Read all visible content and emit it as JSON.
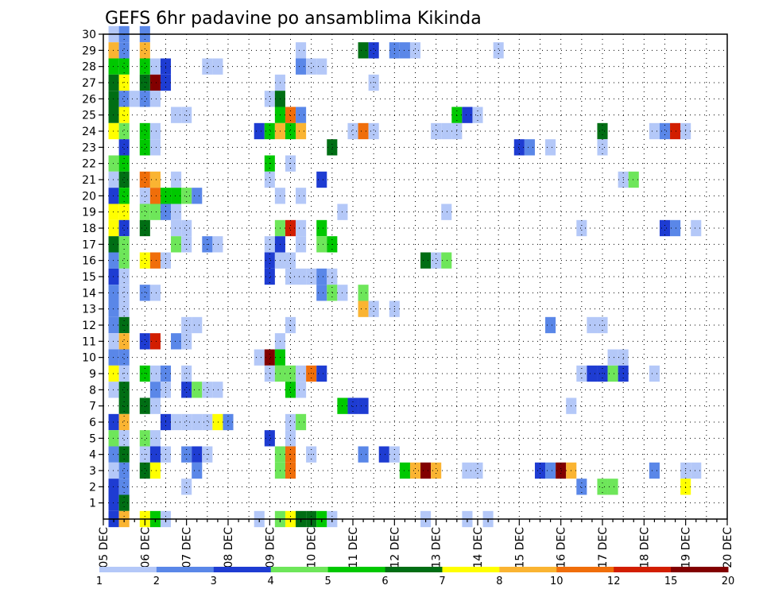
{
  "chart_data": {
    "type": "heatmap",
    "title": "GEFS 6hr padavine po ansamblima Kikinda",
    "xlabel": "",
    "ylabel": "",
    "x_unit": "6-hour steps from 05 DEC 00Z",
    "x_tick_labels": [
      "05 DEC",
      "06 DEC",
      "07 DEC",
      "08 DEC",
      "09 DEC",
      "10 DEC",
      "11 DEC",
      "12 DEC",
      "13 DEC",
      "14 DEC",
      "15 DEC",
      "16 DEC",
      "17 DEC",
      "18 DEC",
      "19 DEC",
      "20 DEC"
    ],
    "xlim": [
      0,
      60
    ],
    "ylim": [
      0,
      30
    ],
    "y_tick_labels": [
      "1",
      "2",
      "3",
      "4",
      "5",
      "6",
      "7",
      "8",
      "9",
      "10",
      "11",
      "12",
      "13",
      "14",
      "15",
      "16",
      "17",
      "18",
      "19",
      "20",
      "21",
      "22",
      "23",
      "24",
      "25",
      "26",
      "27",
      "28",
      "29",
      "30"
    ],
    "grid": true,
    "colorbar": {
      "labels": [
        "1",
        "2",
        "3",
        "4",
        "5",
        "6",
        "7",
        "8",
        "10",
        "12",
        "15",
        "20"
      ],
      "colors": [
        "#b4c8f8",
        "#5a87e8",
        "#1e3cd2",
        "#6ee65a",
        "#00c800",
        "#006e14",
        "#ffff00",
        "#fab432",
        "#f06e0a",
        "#d21e00",
        "#820000"
      ]
    },
    "cells": [
      [
        1,
        30,
        0
      ],
      [
        2,
        30,
        1
      ],
      [
        4,
        30,
        1
      ],
      [
        1,
        29,
        7
      ],
      [
        2,
        29,
        1
      ],
      [
        4,
        29,
        7
      ],
      [
        19,
        29,
        0
      ],
      [
        25,
        29,
        5
      ],
      [
        26,
        29,
        2
      ],
      [
        28,
        29,
        1
      ],
      [
        29,
        29,
        1
      ],
      [
        30,
        29,
        0
      ],
      [
        38,
        29,
        0
      ],
      [
        1,
        28,
        4
      ],
      [
        2,
        28,
        4
      ],
      [
        4,
        28,
        4
      ],
      [
        5,
        28,
        0
      ],
      [
        6,
        28,
        2
      ],
      [
        10,
        28,
        0
      ],
      [
        11,
        28,
        0
      ],
      [
        19,
        28,
        1
      ],
      [
        20,
        28,
        0
      ],
      [
        21,
        28,
        0
      ],
      [
        1,
        27,
        5
      ],
      [
        2,
        27,
        6
      ],
      [
        4,
        27,
        5
      ],
      [
        5,
        27,
        10
      ],
      [
        6,
        27,
        2
      ],
      [
        17,
        27,
        0
      ],
      [
        26,
        27,
        0
      ],
      [
        1,
        26,
        5
      ],
      [
        2,
        26,
        1
      ],
      [
        3,
        26,
        0
      ],
      [
        4,
        26,
        1
      ],
      [
        5,
        26,
        0
      ],
      [
        16,
        26,
        0
      ],
      [
        17,
        26,
        5
      ],
      [
        1,
        25,
        5
      ],
      [
        2,
        25,
        6
      ],
      [
        7,
        25,
        0
      ],
      [
        8,
        25,
        0
      ],
      [
        17,
        25,
        4
      ],
      [
        18,
        25,
        8
      ],
      [
        19,
        25,
        1
      ],
      [
        34,
        25,
        4
      ],
      [
        35,
        25,
        2
      ],
      [
        36,
        25,
        0
      ],
      [
        1,
        24,
        6
      ],
      [
        2,
        24,
        3
      ],
      [
        4,
        24,
        4
      ],
      [
        5,
        24,
        0
      ],
      [
        15,
        24,
        2
      ],
      [
        16,
        24,
        4
      ],
      [
        17,
        24,
        7
      ],
      [
        18,
        24,
        4
      ],
      [
        19,
        24,
        7
      ],
      [
        24,
        24,
        0
      ],
      [
        25,
        24,
        8
      ],
      [
        26,
        24,
        0
      ],
      [
        32,
        24,
        0
      ],
      [
        33,
        24,
        0
      ],
      [
        34,
        24,
        0
      ],
      [
        48,
        24,
        5
      ],
      [
        53,
        24,
        0
      ],
      [
        54,
        24,
        1
      ],
      [
        55,
        24,
        9
      ],
      [
        56,
        24,
        0
      ],
      [
        2,
        23,
        2
      ],
      [
        4,
        23,
        4
      ],
      [
        5,
        23,
        0
      ],
      [
        22,
        23,
        5
      ],
      [
        40,
        23,
        2
      ],
      [
        41,
        23,
        1
      ],
      [
        43,
        23,
        0
      ],
      [
        48,
        23,
        0
      ],
      [
        1,
        22,
        3
      ],
      [
        2,
        22,
        4
      ],
      [
        16,
        22,
        4
      ],
      [
        18,
        22,
        0
      ],
      [
        1,
        21,
        0
      ],
      [
        2,
        21,
        5
      ],
      [
        4,
        21,
        8
      ],
      [
        5,
        21,
        7
      ],
      [
        7,
        21,
        0
      ],
      [
        16,
        21,
        0
      ],
      [
        21,
        21,
        2
      ],
      [
        50,
        21,
        0
      ],
      [
        51,
        21,
        3
      ],
      [
        1,
        20,
        2
      ],
      [
        2,
        20,
        4
      ],
      [
        4,
        20,
        0
      ],
      [
        5,
        20,
        8
      ],
      [
        6,
        20,
        4
      ],
      [
        7,
        20,
        4
      ],
      [
        8,
        20,
        3
      ],
      [
        9,
        20,
        1
      ],
      [
        17,
        20,
        0
      ],
      [
        19,
        20,
        0
      ],
      [
        1,
        19,
        6
      ],
      [
        2,
        19,
        6
      ],
      [
        4,
        19,
        3
      ],
      [
        5,
        19,
        3
      ],
      [
        6,
        19,
        1
      ],
      [
        7,
        19,
        0
      ],
      [
        23,
        19,
        0
      ],
      [
        33,
        19,
        0
      ],
      [
        1,
        18,
        6
      ],
      [
        2,
        18,
        2
      ],
      [
        4,
        18,
        5
      ],
      [
        7,
        18,
        0
      ],
      [
        8,
        18,
        0
      ],
      [
        17,
        18,
        3
      ],
      [
        18,
        18,
        9
      ],
      [
        19,
        18,
        0
      ],
      [
        21,
        18,
        4
      ],
      [
        46,
        18,
        0
      ],
      [
        54,
        18,
        2
      ],
      [
        55,
        18,
        1
      ],
      [
        57,
        18,
        0
      ],
      [
        1,
        17,
        5
      ],
      [
        2,
        17,
        3
      ],
      [
        7,
        17,
        3
      ],
      [
        8,
        17,
        0
      ],
      [
        10,
        17,
        1
      ],
      [
        11,
        17,
        0
      ],
      [
        16,
        17,
        0
      ],
      [
        17,
        17,
        2
      ],
      [
        19,
        17,
        0
      ],
      [
        21,
        17,
        3
      ],
      [
        22,
        17,
        4
      ],
      [
        1,
        16,
        1
      ],
      [
        2,
        16,
        3
      ],
      [
        4,
        16,
        6
      ],
      [
        5,
        16,
        8
      ],
      [
        6,
        16,
        0
      ],
      [
        16,
        16,
        2
      ],
      [
        17,
        16,
        0
      ],
      [
        18,
        16,
        0
      ],
      [
        31,
        16,
        5
      ],
      [
        32,
        16,
        0
      ],
      [
        33,
        16,
        3
      ],
      [
        1,
        15,
        2
      ],
      [
        2,
        15,
        0
      ],
      [
        16,
        15,
        2
      ],
      [
        18,
        15,
        0
      ],
      [
        19,
        15,
        0
      ],
      [
        20,
        15,
        0
      ],
      [
        21,
        15,
        1
      ],
      [
        22,
        15,
        0
      ],
      [
        1,
        14,
        1
      ],
      [
        2,
        14,
        0
      ],
      [
        4,
        14,
        1
      ],
      [
        5,
        14,
        0
      ],
      [
        21,
        14,
        1
      ],
      [
        22,
        14,
        3
      ],
      [
        23,
        14,
        0
      ],
      [
        25,
        14,
        3
      ],
      [
        1,
        13,
        1
      ],
      [
        2,
        13,
        0
      ],
      [
        25,
        13,
        7
      ],
      [
        26,
        13,
        0
      ],
      [
        28,
        13,
        0
      ],
      [
        1,
        12,
        1
      ],
      [
        2,
        12,
        5
      ],
      [
        8,
        12,
        0
      ],
      [
        9,
        12,
        0
      ],
      [
        18,
        12,
        0
      ],
      [
        43,
        12,
        1
      ],
      [
        47,
        12,
        0
      ],
      [
        48,
        12,
        0
      ],
      [
        1,
        11,
        0
      ],
      [
        2,
        11,
        7
      ],
      [
        4,
        11,
        2
      ],
      [
        5,
        11,
        9
      ],
      [
        7,
        11,
        1
      ],
      [
        8,
        11,
        0
      ],
      [
        17,
        11,
        0
      ],
      [
        1,
        10,
        1
      ],
      [
        2,
        10,
        1
      ],
      [
        15,
        10,
        0
      ],
      [
        16,
        10,
        10
      ],
      [
        17,
        10,
        4
      ],
      [
        49,
        10,
        0
      ],
      [
        50,
        10,
        0
      ],
      [
        1,
        9,
        6
      ],
      [
        2,
        9,
        0
      ],
      [
        4,
        9,
        4
      ],
      [
        5,
        9,
        0
      ],
      [
        6,
        9,
        1
      ],
      [
        8,
        9,
        0
      ],
      [
        16,
        9,
        0
      ],
      [
        17,
        9,
        3
      ],
      [
        18,
        9,
        3
      ],
      [
        19,
        9,
        0
      ],
      [
        20,
        9,
        8
      ],
      [
        21,
        9,
        2
      ],
      [
        46,
        9,
        0
      ],
      [
        47,
        9,
        2
      ],
      [
        48,
        9,
        2
      ],
      [
        49,
        9,
        3
      ],
      [
        50,
        9,
        2
      ],
      [
        53,
        9,
        0
      ],
      [
        1,
        8,
        0
      ],
      [
        2,
        8,
        5
      ],
      [
        5,
        8,
        1
      ],
      [
        6,
        8,
        0
      ],
      [
        8,
        8,
        2
      ],
      [
        9,
        8,
        3
      ],
      [
        10,
        8,
        0
      ],
      [
        11,
        8,
        0
      ],
      [
        18,
        8,
        4
      ],
      [
        19,
        8,
        0
      ],
      [
        2,
        7,
        5
      ],
      [
        4,
        7,
        5
      ],
      [
        5,
        7,
        0
      ],
      [
        23,
        7,
        4
      ],
      [
        24,
        7,
        2
      ],
      [
        25,
        7,
        2
      ],
      [
        45,
        7,
        0
      ],
      [
        1,
        6,
        2
      ],
      [
        2,
        6,
        7
      ],
      [
        6,
        6,
        2
      ],
      [
        7,
        6,
        0
      ],
      [
        8,
        6,
        0
      ],
      [
        9,
        6,
        0
      ],
      [
        10,
        6,
        0
      ],
      [
        11,
        6,
        6
      ],
      [
        12,
        6,
        1
      ],
      [
        18,
        6,
        0
      ],
      [
        19,
        6,
        3
      ],
      [
        1,
        5,
        3
      ],
      [
        2,
        5,
        0
      ],
      [
        4,
        5,
        3
      ],
      [
        5,
        5,
        0
      ],
      [
        16,
        5,
        2
      ],
      [
        18,
        5,
        0
      ],
      [
        1,
        4,
        1
      ],
      [
        2,
        4,
        5
      ],
      [
        4,
        4,
        0
      ],
      [
        5,
        4,
        2
      ],
      [
        6,
        4,
        0
      ],
      [
        8,
        4,
        1
      ],
      [
        9,
        4,
        2
      ],
      [
        10,
        4,
        0
      ],
      [
        17,
        4,
        3
      ],
      [
        18,
        4,
        8
      ],
      [
        20,
        4,
        0
      ],
      [
        25,
        4,
        1
      ],
      [
        27,
        4,
        2
      ],
      [
        28,
        4,
        0
      ],
      [
        1,
        3,
        0
      ],
      [
        2,
        3,
        1
      ],
      [
        4,
        3,
        5
      ],
      [
        5,
        3,
        6
      ],
      [
        9,
        3,
        1
      ],
      [
        17,
        3,
        3
      ],
      [
        18,
        3,
        8
      ],
      [
        29,
        3,
        4
      ],
      [
        30,
        3,
        7
      ],
      [
        31,
        3,
        10
      ],
      [
        32,
        3,
        7
      ],
      [
        35,
        3,
        0
      ],
      [
        36,
        3,
        0
      ],
      [
        42,
        3,
        2
      ],
      [
        43,
        3,
        1
      ],
      [
        44,
        3,
        10
      ],
      [
        45,
        3,
        7
      ],
      [
        53,
        3,
        1
      ],
      [
        56,
        3,
        0
      ],
      [
        57,
        3,
        0
      ],
      [
        1,
        2,
        2
      ],
      [
        2,
        2,
        1
      ],
      [
        8,
        2,
        0
      ],
      [
        46,
        2,
        1
      ],
      [
        48,
        2,
        3
      ],
      [
        49,
        2,
        3
      ],
      [
        56,
        2,
        6
      ],
      [
        1,
        1,
        2
      ],
      [
        2,
        1,
        5
      ],
      [
        1,
        0,
        2
      ],
      [
        2,
        0,
        7
      ],
      [
        4,
        0,
        6
      ],
      [
        5,
        0,
        4
      ],
      [
        6,
        0,
        0
      ],
      [
        15,
        0,
        0
      ],
      [
        17,
        0,
        3
      ],
      [
        18,
        0,
        6
      ],
      [
        19,
        0,
        5
      ],
      [
        20,
        0,
        5
      ],
      [
        21,
        0,
        4
      ],
      [
        22,
        0,
        0
      ],
      [
        31,
        0,
        0
      ],
      [
        35,
        0,
        0
      ],
      [
        37,
        0,
        0
      ]
    ]
  }
}
